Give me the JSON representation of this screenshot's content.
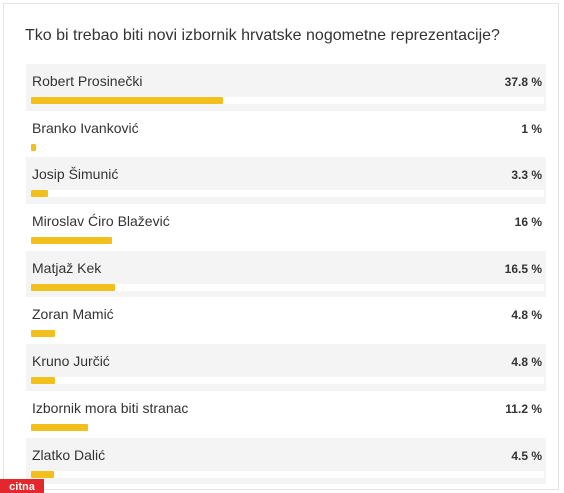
{
  "poll": {
    "question": "Tko bi trebao biti novi izbornik hrvatske nogometne reprezentacije?",
    "bar_color": "#f2c01d",
    "options": [
      {
        "name": "Robert Prosinečki",
        "percent_label": "37.8 %",
        "value": 37.8
      },
      {
        "name": "Branko Ivanković",
        "percent_label": "1 %",
        "value": 1
      },
      {
        "name": "Josip Šimunić",
        "percent_label": "3.3 %",
        "value": 3.3
      },
      {
        "name": "Miroslav Ćiro Blažević",
        "percent_label": "16 %",
        "value": 16
      },
      {
        "name": "Matjaž Kek",
        "percent_label": "16.5 %",
        "value": 16.5
      },
      {
        "name": "Zoran Mamić",
        "percent_label": "4.8 %",
        "value": 4.8
      },
      {
        "name": "Kruno Jurčić",
        "percent_label": "4.8 %",
        "value": 4.8
      },
      {
        "name": "Izbornik mora biti stranac",
        "percent_label": "11.2 %",
        "value": 11.2
      },
      {
        "name": "Zlatko Dalić",
        "percent_label": "4.5 %",
        "value": 4.5
      }
    ]
  },
  "watermark": {
    "text": "citna",
    "color": "#e3272d"
  }
}
